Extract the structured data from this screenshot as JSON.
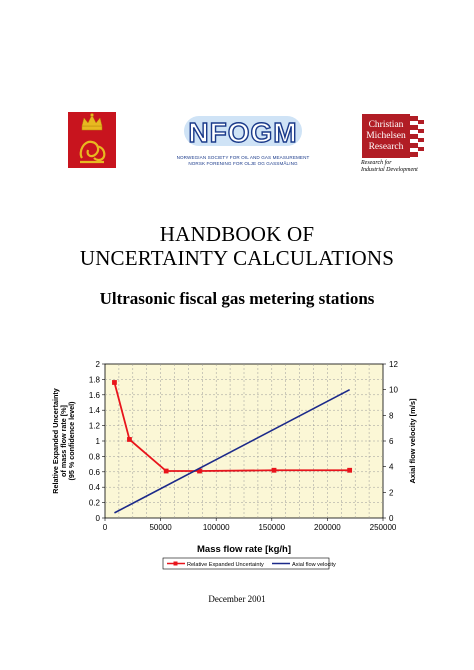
{
  "logos": {
    "emblem_icon": "norwegian-crown-lion-emblem",
    "nfogm": {
      "wordmark": "NFOGM",
      "line1": "NORWEGIAN SOCIETY FOR OIL AND GAS MEASUREMENT",
      "line2": "NORSK FORENING FOR OLJE OG GASSMÅLING"
    },
    "cmr": {
      "name_line1": "Christian",
      "name_line2": "Michelsen",
      "name_line3": "Research",
      "tagline1": "Research for",
      "tagline2": "Industrial Development"
    }
  },
  "document": {
    "title_line1": "HANDBOOK OF",
    "title_line2": "UNCERTAINTY CALCULATIONS",
    "subtitle": "Ultrasonic fiscal gas metering stations",
    "date": "December 2001"
  },
  "colors": {
    "red_series": "#e8141b",
    "blue_series": "#1c2a8a",
    "plot_area": "#fbf7d6",
    "emblem_red": "#c8141e",
    "emblem_gold": "#e8b820",
    "cmr_red": "#b11d25",
    "nfogm_blue": "#1a3a8a"
  },
  "chart_data": {
    "type": "line",
    "xlabel": "Mass flow rate  [kg/h]",
    "ylabel_left": [
      "Relative Expanded Uncertainty",
      "of mass flow rate [%]",
      "(95 % confidence level)"
    ],
    "ylabel_right": "Axial flow velocity  [m/s]",
    "xlim": [
      0,
      250000
    ],
    "ylim_left": [
      0,
      2
    ],
    "ylim_right": [
      0,
      12
    ],
    "x_ticks": [
      "0",
      "50000",
      "100000",
      "150000",
      "200000",
      "250000"
    ],
    "y_left_ticks": [
      "0",
      "0.2",
      "0.4",
      "0.6",
      "0.8",
      "1",
      "1.2",
      "1.4",
      "1.6",
      "1.8",
      "2"
    ],
    "y_right_ticks": [
      "0",
      "2",
      "4",
      "6",
      "8",
      "10",
      "12"
    ],
    "grid": true,
    "legend_position": "bottom",
    "series": [
      {
        "name": "Relative Expanded Uncertainty",
        "axis": "left",
        "marker": "square",
        "x": [
          8500,
          22000,
          55000,
          85000,
          152000,
          220000
        ],
        "y": [
          1.76,
          1.02,
          0.61,
          0.61,
          0.62,
          0.62
        ]
      },
      {
        "name": "Axial flow velocity",
        "axis": "right",
        "marker": "none",
        "x": [
          8500,
          220000
        ],
        "y": [
          0.4,
          10
        ]
      }
    ]
  }
}
